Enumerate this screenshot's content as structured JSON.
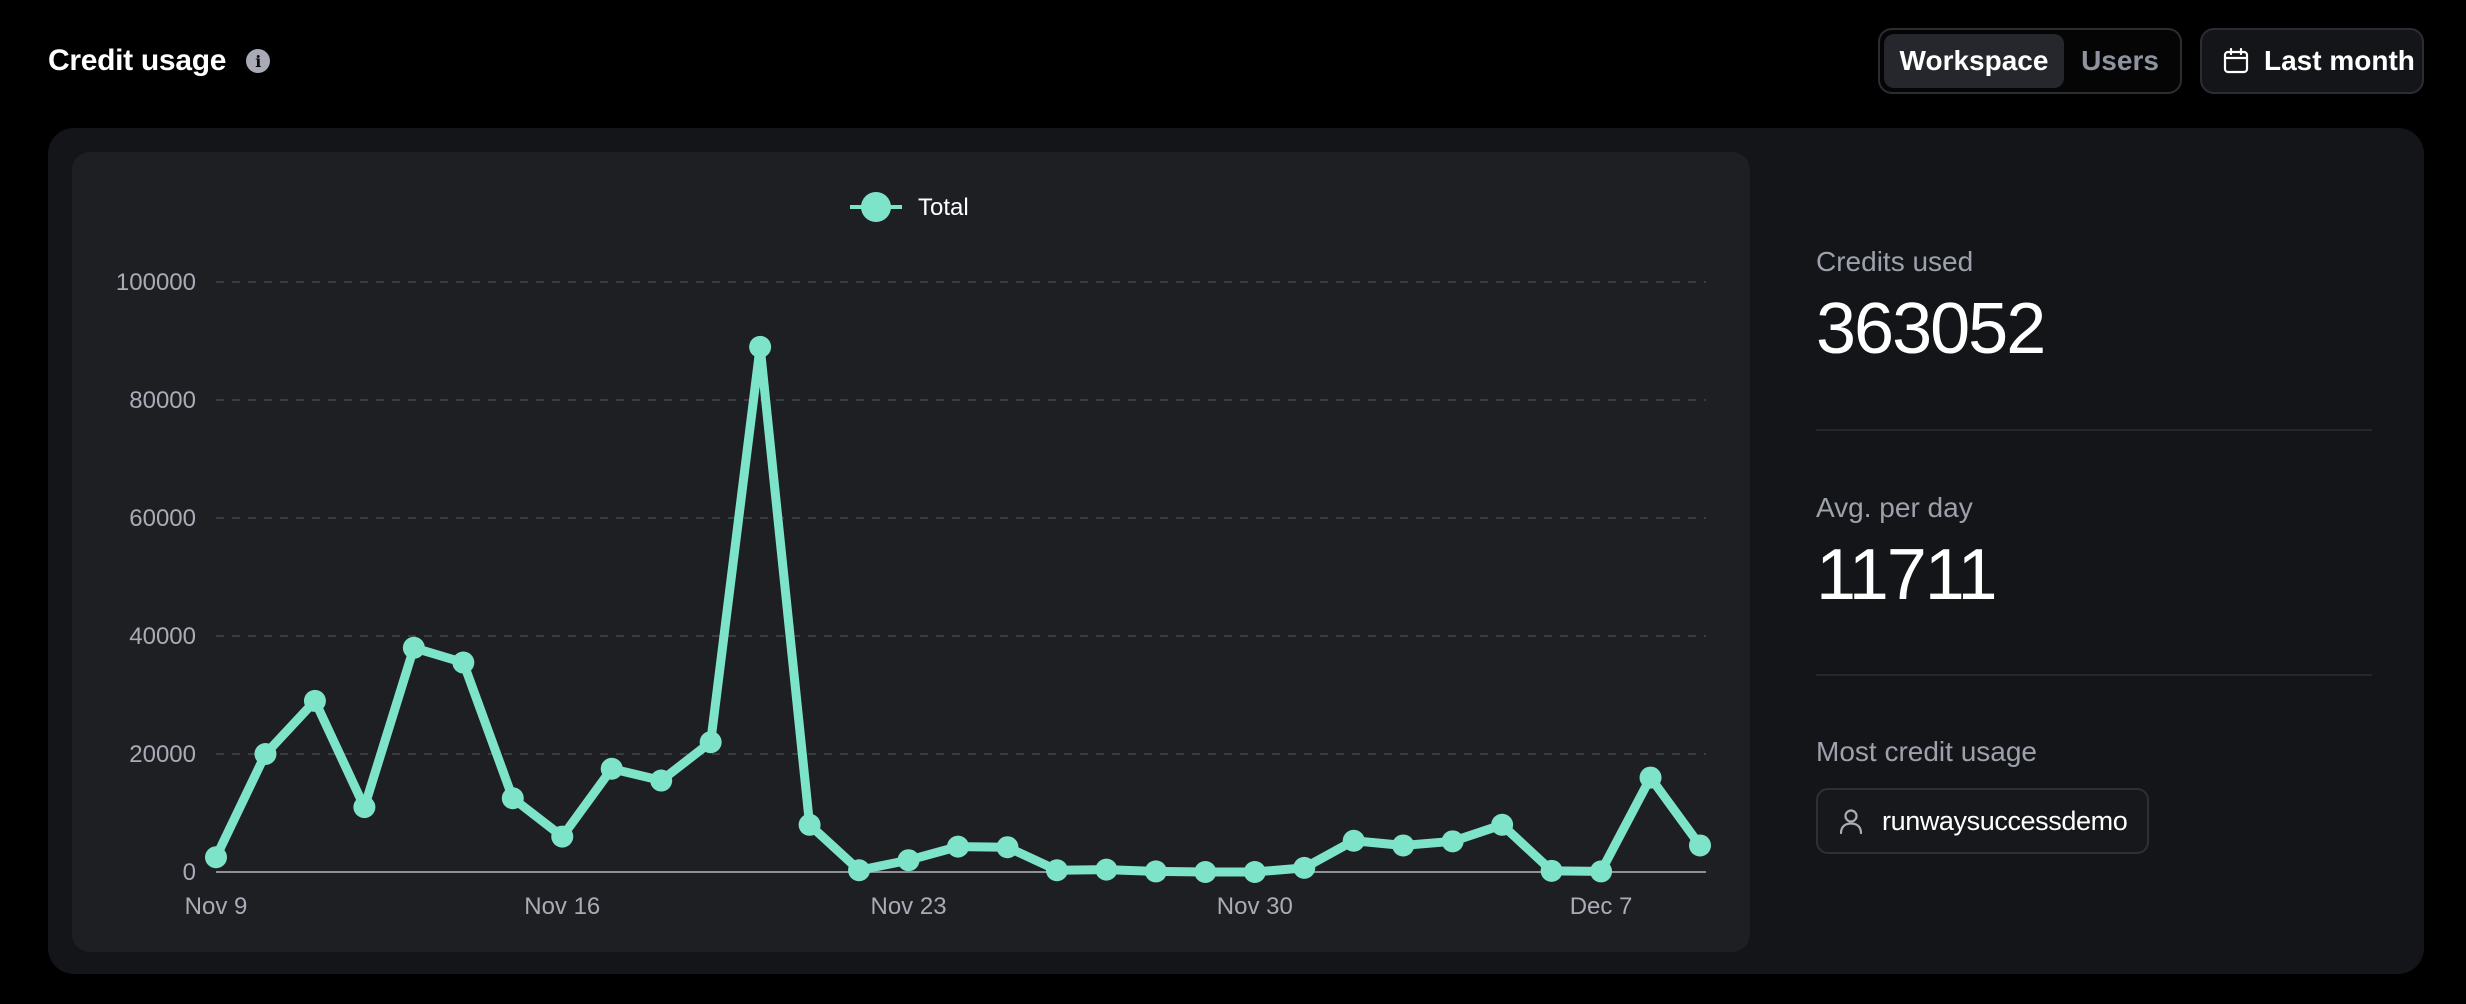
{
  "header": {
    "title": "Credit usage",
    "info_icon": "info-icon",
    "scope_tabs": [
      {
        "label": "Workspace",
        "active": true
      },
      {
        "label": "Users",
        "active": false
      }
    ],
    "range_label": "Last month",
    "range_icon": "calendar-icon"
  },
  "stats": {
    "credits_used_label": "Credits used",
    "credits_used_value": "363052",
    "avg_label": "Avg. per day",
    "avg_value": "11711",
    "most_usage_label": "Most credit usage",
    "most_usage_user": "runwaysuccessdemo",
    "user_icon": "user-icon"
  },
  "colors": {
    "accent": "#7ee4c9",
    "background": "#000000",
    "panel": "#141518",
    "chart_card": "#1e1f23"
  },
  "chart_data": {
    "type": "line",
    "legend": [
      {
        "name": "Total",
        "color": "#7ee4c9"
      }
    ],
    "legend_position": "top-center",
    "grid": "horizontal-dashed",
    "x_tick_labels": [
      "Nov 9",
      "Nov 16",
      "Nov 23",
      "Nov 30",
      "Dec 7"
    ],
    "x_tick_indices": [
      0,
      7,
      14,
      21,
      28
    ],
    "y_ticks": [
      0,
      20000,
      40000,
      60000,
      80000,
      100000
    ],
    "ylim": [
      0,
      100000
    ],
    "series": [
      {
        "name": "Total",
        "values": [
          2500,
          20000,
          29000,
          11000,
          38000,
          35500,
          12500,
          6000,
          17500,
          15500,
          22000,
          89000,
          8000,
          300,
          2000,
          4300,
          4200,
          300,
          400,
          100,
          0,
          0,
          700,
          5300,
          4500,
          5200,
          8000,
          200,
          100,
          16000,
          4500
        ]
      }
    ]
  }
}
